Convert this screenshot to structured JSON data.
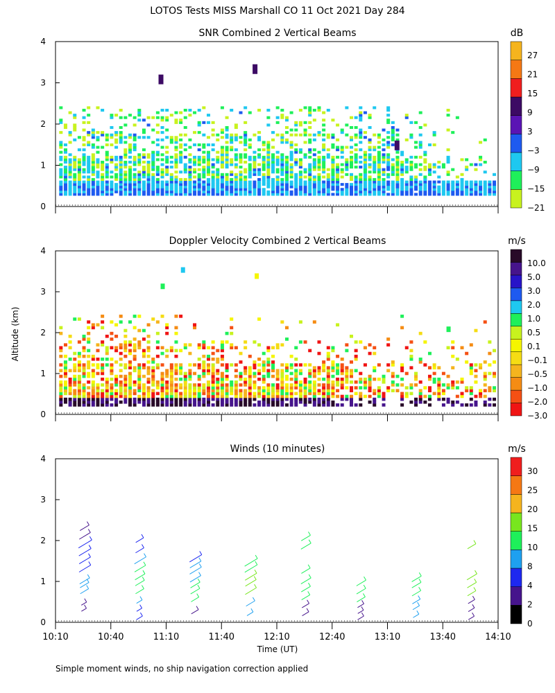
{
  "figure": {
    "title": "LOTOS Tests MISS Marshall CO  11 Oct 2021 Day 284",
    "footnote": "Simple moment winds, no ship navigation correction applied"
  },
  "colors": {
    "snr": [
      "#c8f21e",
      "#1ef05a",
      "#1ec8f0",
      "#1e5af0",
      "#5a14b4",
      "#3c0a64",
      "#f01e1e",
      "#f57814",
      "#f5b41e"
    ],
    "doppler": [
      "#f01414",
      "#f55014",
      "#f58c14",
      "#f5b41e",
      "#f5dc14",
      "#f5f500",
      "#c8f21e",
      "#1ef05a",
      "#1ec8f0",
      "#1e5af0",
      "#2814c8",
      "#46148c",
      "#280a28"
    ],
    "winds": [
      "#000000",
      "#46148c",
      "#1e28f0",
      "#1ea0f0",
      "#1ef05a",
      "#78e61e",
      "#f5b41e",
      "#f57814",
      "#f01e1e"
    ]
  },
  "chart_data": [
    {
      "type": "heatmap",
      "title": "SNR Combined 2 Vertical Beams",
      "xlabel": "",
      "ylabel": "",
      "colorbar_unit": "dB",
      "colorbar_ticks": [
        "27",
        "21",
        "15",
        "9",
        "3",
        "−3",
        "−9",
        "−15",
        "−21"
      ],
      "yticks": [
        "0",
        "1",
        "2",
        "3",
        "4"
      ],
      "ylim": [
        0,
        4
      ],
      "xlim_minutes": [
        0,
        240
      ],
      "notable_cells": [
        {
          "time_min": 57,
          "alt_km": 3.05,
          "value_db": 6
        },
        {
          "time_min": 108,
          "alt_km": 3.3,
          "value_db": 9
        },
        {
          "time_min": 185,
          "alt_km": 1.45,
          "value_db": 6
        }
      ]
    },
    {
      "type": "heatmap",
      "title": "Doppler Velocity Combined 2 Vertical Beams",
      "xlabel": "",
      "ylabel": "Altitude (km)",
      "colorbar_unit": "m/s",
      "colorbar_ticks": [
        "10.0",
        "5.0",
        "3.0",
        "2.0",
        "1.0",
        "0.5",
        "0.1",
        "−0.1",
        "−0.5",
        "−1.0",
        "−2.0",
        "−3.0"
      ],
      "yticks": [
        "0",
        "1",
        "2",
        "3",
        "4"
      ],
      "ylim": [
        0,
        4
      ],
      "xlim_minutes": [
        0,
        240
      ]
    },
    {
      "type": "scatter",
      "title": "Winds (10 minutes)",
      "xlabel": "Time (UT)",
      "ylabel": "",
      "colorbar_unit": "m/s",
      "colorbar_ticks": [
        "30",
        "25",
        "20",
        "15",
        "10",
        "8",
        "4",
        "2",
        "0"
      ],
      "yticks": [
        "0",
        "1",
        "2",
        "3",
        "4"
      ],
      "xticks": [
        "10:10",
        "10:40",
        "11:10",
        "11:40",
        "12:10",
        "12:40",
        "13:10",
        "13:40",
        "14:10"
      ],
      "ylim": [
        0,
        4
      ],
      "xlim_minutes": [
        0,
        240
      ],
      "profile_times_min": [
        15,
        45,
        75,
        105,
        135,
        165,
        195,
        225
      ],
      "profiles": [
        {
          "time_min": 15,
          "barbs": [
            [
              0.3,
              0.5,
              1
            ],
            [
              0.45,
              0.65,
              1
            ],
            [
              0.75,
              2.5,
              3
            ],
            [
              0.9,
              2.8,
              3
            ],
            [
              1.0,
              3.5,
              3
            ],
            [
              1.3,
              4.5,
              2
            ],
            [
              1.5,
              4.3,
              2
            ],
            [
              1.7,
              4.8,
              2
            ],
            [
              1.9,
              5.5,
              2
            ],
            [
              2.1,
              4.2,
              1
            ],
            [
              2.3,
              3.0,
              1
            ]
          ]
        },
        {
          "time_min": 45,
          "barbs": [
            [
              0.1,
              1.2,
              2
            ],
            [
              0.3,
              0.7,
              2
            ],
            [
              0.5,
              0.9,
              3
            ],
            [
              0.75,
              2.5,
              4
            ],
            [
              0.95,
              3.0,
              4
            ],
            [
              1.1,
              3.5,
              4
            ],
            [
              1.3,
              4.1,
              4
            ],
            [
              1.5,
              4.5,
              3
            ],
            [
              1.75,
              2.5,
              2
            ],
            [
              2.0,
              2.2,
              2
            ]
          ]
        },
        {
          "time_min": 75,
          "barbs": [
            [
              0.25,
              1.8,
              1
            ],
            [
              0.55,
              2.2,
              4
            ],
            [
              0.75,
              3.0,
              4
            ],
            [
              0.9,
              3.2,
              4
            ],
            [
              1.05,
              4.0,
              3
            ],
            [
              1.25,
              4.5,
              3
            ],
            [
              1.4,
              4.2,
              3
            ],
            [
              1.55,
              4.8,
              2
            ]
          ]
        },
        {
          "time_min": 105,
          "barbs": [
            [
              0.2,
              1.2,
              3
            ],
            [
              0.45,
              2.8,
              3
            ],
            [
              0.75,
              4.2,
              5
            ],
            [
              0.95,
              4.0,
              5
            ],
            [
              1.1,
              4.5,
              5
            ],
            [
              1.3,
              5.0,
              4
            ],
            [
              1.45,
              5.2,
              4
            ]
          ]
        },
        {
          "time_min": 135,
          "barbs": [
            [
              0.2,
              1.5,
              1
            ],
            [
              0.4,
              1.8,
              1
            ],
            [
              0.6,
              2.5,
              4
            ],
            [
              0.8,
              3.0,
              4
            ],
            [
              1.0,
              3.5,
              4
            ],
            [
              1.25,
              2.8,
              4
            ],
            [
              1.85,
              3.5,
              4
            ],
            [
              2.05,
              3.0,
              4
            ]
          ]
        },
        {
          "time_min": 165,
          "barbs": [
            [
              0.1,
              1.2,
              1
            ],
            [
              0.25,
              0.9,
              1
            ],
            [
              0.4,
              1.3,
              1
            ],
            [
              0.55,
              2.5,
              4
            ],
            [
              0.75,
              3.0,
              4
            ],
            [
              0.95,
              3.2,
              4
            ]
          ]
        },
        {
          "time_min": 195,
          "barbs": [
            [
              0.15,
              1.0,
              3
            ],
            [
              0.35,
              1.5,
              3
            ],
            [
              0.5,
              2.2,
              3
            ],
            [
              0.7,
              2.8,
              4
            ],
            [
              0.9,
              3.0,
              4
            ],
            [
              1.05,
              3.2,
              4
            ]
          ]
        },
        {
          "time_min": 225,
          "barbs": [
            [
              0.1,
              1.0,
              1
            ],
            [
              0.3,
              1.2,
              1
            ],
            [
              0.5,
              1.5,
              1
            ],
            [
              0.7,
              2.5,
              5
            ],
            [
              0.9,
              3.0,
              5
            ],
            [
              1.1,
              3.5,
              5
            ],
            [
              1.85,
              2.5,
              5
            ]
          ]
        }
      ]
    }
  ]
}
